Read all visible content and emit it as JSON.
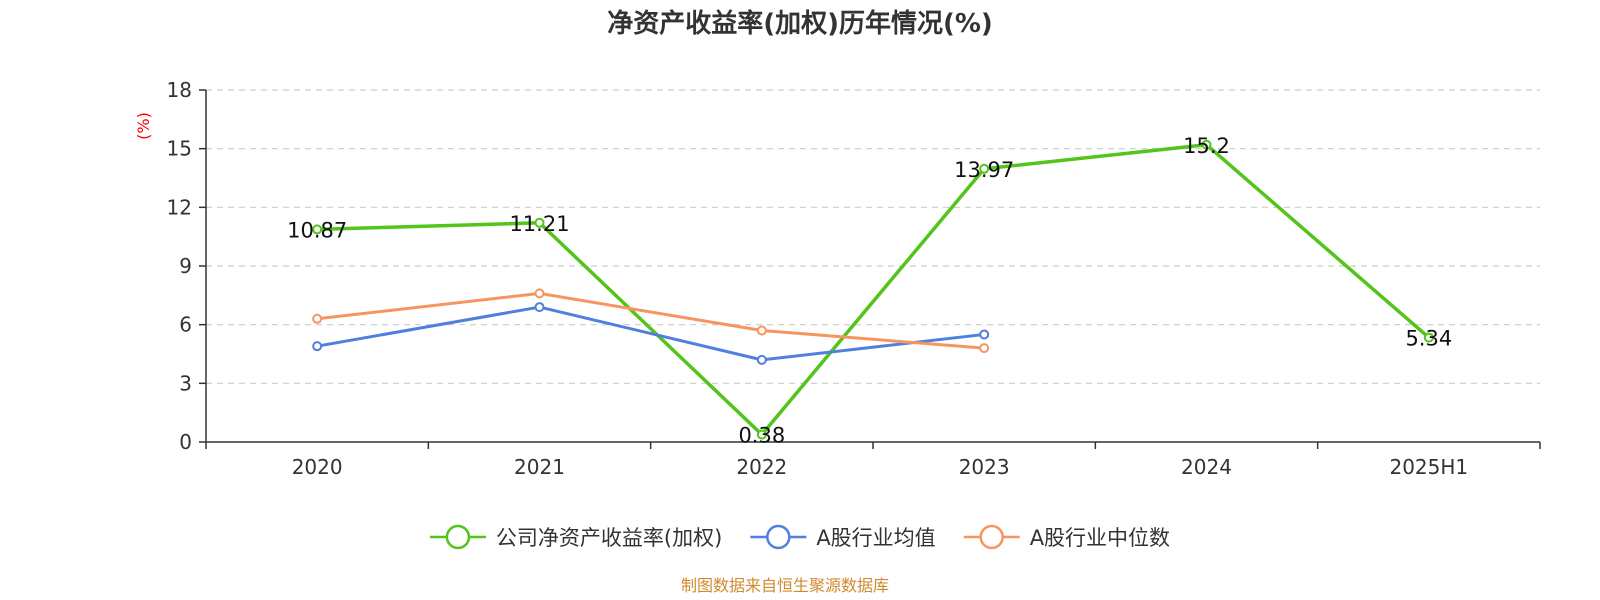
{
  "chart_data": {
    "type": "line",
    "title": "净资产收益率(加权)历年情况(%)",
    "ylabel": "(%)",
    "ylabel_color": "#ff0000",
    "categories": [
      "2020",
      "2021",
      "2022",
      "2023",
      "2024",
      "2025H1"
    ],
    "ylim": [
      0,
      18
    ],
    "yticks": [
      0,
      3,
      6,
      9,
      12,
      15,
      18
    ],
    "grid": true,
    "legend_position": "bottom-center",
    "series": [
      {
        "name": "公司净资产收益率(加权)",
        "color": "#52c41a",
        "show_labels": true,
        "values": [
          10.87,
          11.21,
          0.38,
          13.97,
          15.2,
          5.34
        ],
        "labels": [
          "10.87",
          "11.21",
          "0.38",
          "13.97",
          "15.2",
          "5.34"
        ]
      },
      {
        "name": "A股行业均值",
        "color": "#4f7fe0",
        "show_labels": false,
        "values": [
          4.9,
          6.9,
          4.2,
          5.5,
          null,
          null
        ]
      },
      {
        "name": "A股行业中位数",
        "color": "#f79560",
        "show_labels": false,
        "values": [
          6.3,
          7.6,
          5.7,
          4.8,
          null,
          null
        ]
      }
    ]
  },
  "source_text": "制图数据来自恒生聚源数据库",
  "source_color": "#d08a2e"
}
